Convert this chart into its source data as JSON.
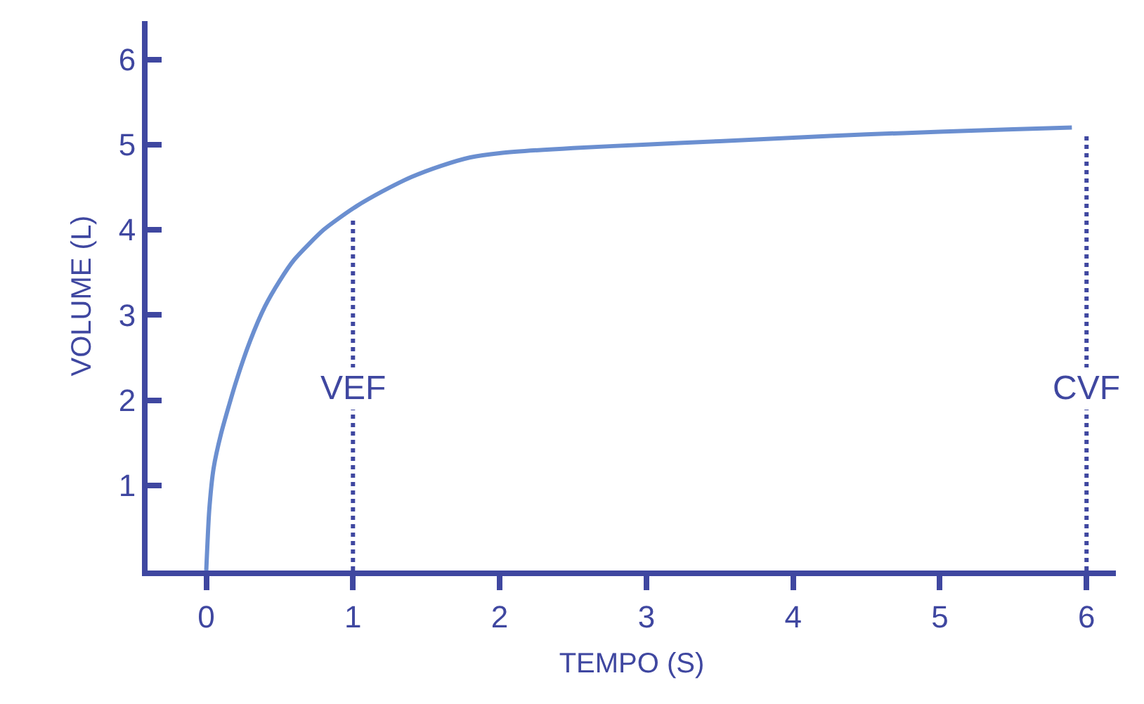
{
  "chart_data": {
    "type": "line",
    "xlabel": "TEMPO (S)",
    "ylabel": "VOLUME (L)",
    "series": [
      {
        "color": "#6b8fd0",
        "x": [
          0,
          0.02,
          0.05,
          0.1,
          0.2,
          0.3,
          0.4,
          0.5,
          0.6,
          0.8,
          1.0,
          1.2,
          1.4,
          1.6,
          1.8,
          2.0,
          2.5,
          3,
          3.5,
          4,
          4.5,
          5,
          5.5,
          5.9
        ],
        "values": [
          0,
          0.7,
          1.2,
          1.6,
          2.2,
          2.7,
          3.1,
          3.4,
          3.65,
          4.0,
          4.25,
          4.45,
          4.62,
          4.75,
          4.85,
          4.9,
          4.96,
          5.0,
          5.04,
          5.08,
          5.12,
          5.15,
          5.18,
          5.2
        ]
      }
    ],
    "xlim": [
      -0.4,
      6.2
    ],
    "xticks": [
      0,
      1,
      2,
      3,
      4,
      5,
      6
    ],
    "ylim": [
      0,
      6.45
    ],
    "yticks": [
      1,
      2,
      3,
      4,
      5,
      6
    ],
    "ref_lines": [
      {
        "axis": "x",
        "value": 1,
        "label": "VEF",
        "color": "#3f47a0",
        "line_style": "dotted"
      },
      {
        "axis": "x",
        "value": 6,
        "label": "CVF",
        "color": "#3f47a0",
        "line_style": "dotted"
      }
    ],
    "marker": "none",
    "line_style": "solid"
  }
}
